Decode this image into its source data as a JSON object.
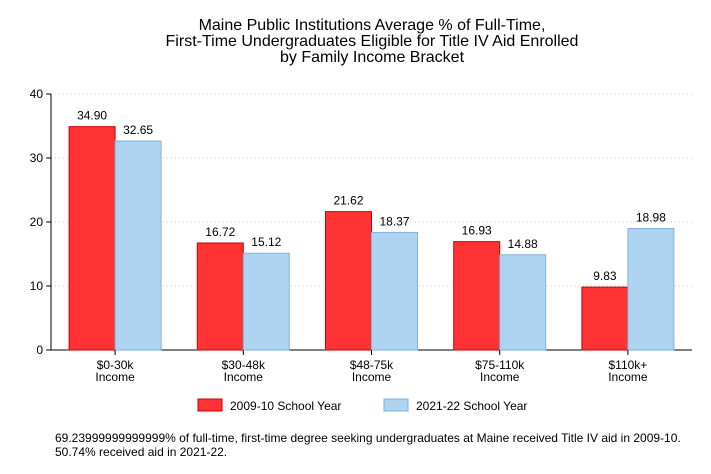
{
  "chart_data": {
    "type": "bar",
    "title": [
      "Maine Public Institutions Average % of Full-Time,",
      "First-Time Undergraduates Eligible for Title IV Aid Enrolled",
      "by Family Income Bracket"
    ],
    "categories": [
      [
        "$0-30k",
        "Income"
      ],
      [
        "$30-48k",
        "Income"
      ],
      [
        "$48-75k",
        "Income"
      ],
      [
        "$75-110k",
        "Income"
      ],
      [
        "$110k+",
        "Income"
      ]
    ],
    "series": [
      {
        "name": "2009-10 School Year",
        "values": [
          34.9,
          16.72,
          21.62,
          16.93,
          9.83
        ],
        "labels": [
          "34.90",
          "16.72",
          "21.62",
          "16.93",
          "9.83"
        ],
        "color": "#ff3333",
        "stroke": "#cc0000"
      },
      {
        "name": "2021-22 School Year",
        "values": [
          32.65,
          15.12,
          18.37,
          14.88,
          18.98
        ],
        "labels": [
          "32.65",
          "15.12",
          "18.37",
          "14.88",
          "18.98"
        ],
        "color": "#aed4f2",
        "stroke": "#7fb3dd"
      }
    ],
    "ylim": [
      0,
      40
    ],
    "yticks": [
      0,
      10,
      20,
      30,
      40
    ],
    "xlabel": "",
    "ylabel": "",
    "grid": "horizontal-dotted",
    "legend_position": "bottom"
  },
  "note": "69.23999999999999% of full-time, first-time degree seeking undergraduates at Maine received Title IV aid in 2009-10. 50.74% received aid in 2021-22."
}
